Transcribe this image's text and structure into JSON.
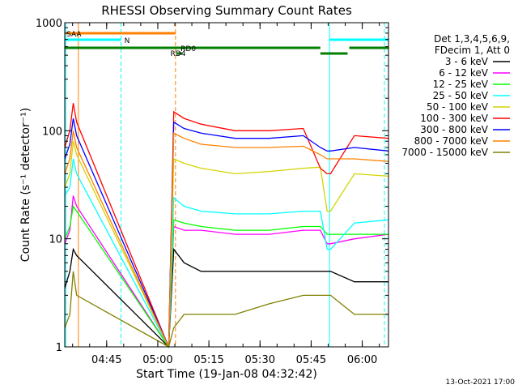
{
  "chart_data": {
    "type": "line",
    "title": "RHESSI Observing Summary Count Rates",
    "xlabel": "Start Time (19-Jan-08 04:32:42)",
    "ylabel": "Count Rate (s⁻¹ detector⁻¹)",
    "yscale": "log",
    "ylim": [
      1,
      1000
    ],
    "xlim_minutes": [
      0,
      95
    ],
    "x_ticks": [
      {
        "minute": 12.3,
        "label": "04:45"
      },
      {
        "minute": 27.3,
        "label": "05:00"
      },
      {
        "minute": 42.3,
        "label": "05:15"
      },
      {
        "minute": 57.3,
        "label": "05:30"
      },
      {
        "minute": 72.3,
        "label": "05:45"
      },
      {
        "minute": 87.3,
        "label": "06:00"
      }
    ],
    "y_ticks": [
      {
        "value": 1,
        "label": "1"
      },
      {
        "value": 10,
        "label": "10"
      },
      {
        "value": 100,
        "label": "100"
      },
      {
        "value": 1000,
        "label": "1000"
      }
    ],
    "legend": {
      "position": "right",
      "header": [
        "Det 1,3,4,5,6,9,",
        "FDecim 1, Att 0"
      ]
    },
    "series": [
      {
        "name": "3 - 6 keV",
        "color": "#000000",
        "x": [
          0,
          1.5,
          2.5,
          3.5,
          30.5,
          32,
          35,
          40,
          50,
          60,
          70,
          75,
          77,
          78,
          85,
          95
        ],
        "y": [
          3.5,
          5,
          8,
          7,
          1,
          8,
          6,
          5,
          5,
          5,
          5,
          5,
          5,
          5,
          4,
          4
        ]
      },
      {
        "name": "6 - 12 keV",
        "color": "#ff00ff",
        "x": [
          0,
          1.5,
          2.5,
          3.5,
          30.5,
          32,
          35,
          40,
          50,
          60,
          70,
          75,
          77,
          78,
          85,
          95
        ],
        "y": [
          9,
          12,
          25,
          20,
          1,
          13,
          12,
          12,
          11,
          11,
          12,
          12,
          9,
          9,
          10,
          11
        ]
      },
      {
        "name": "12 - 25 keV",
        "color": "#00ff00",
        "x": [
          0,
          1.5,
          2.5,
          3.5,
          30.5,
          32,
          35,
          40,
          50,
          60,
          70,
          75,
          77,
          78,
          85,
          95
        ],
        "y": [
          10,
          13,
          20,
          18,
          1,
          15,
          14,
          13,
          12,
          12,
          13,
          13,
          11,
          11,
          11,
          11
        ]
      },
      {
        "name": "25 - 50 keV",
        "color": "#00ffff",
        "x": [
          0,
          1.5,
          2.5,
          3.5,
          30.5,
          32,
          35,
          40,
          50,
          60,
          70,
          75,
          77,
          78,
          85,
          95
        ],
        "y": [
          25,
          30,
          55,
          40,
          1,
          24,
          20,
          18,
          17,
          17,
          18,
          18,
          8,
          8,
          14,
          15
        ]
      },
      {
        "name": "50 - 100 keV",
        "color": "#d4d400",
        "x": [
          0,
          1.5,
          2.5,
          3.5,
          30.5,
          32,
          35,
          40,
          50,
          60,
          70,
          75,
          77,
          78,
          85,
          95
        ],
        "y": [
          30,
          40,
          80,
          60,
          1,
          55,
          50,
          45,
          40,
          42,
          45,
          46,
          18,
          18,
          40,
          38
        ]
      },
      {
        "name": "100 - 300 keV",
        "color": "#ff0000",
        "x": [
          0,
          1.5,
          2.5,
          3.5,
          30.5,
          32,
          35,
          40,
          50,
          60,
          70,
          75,
          77,
          78,
          85,
          95
        ],
        "y": [
          70,
          100,
          180,
          120,
          1,
          150,
          130,
          115,
          100,
          100,
          105,
          45,
          40,
          40,
          90,
          85
        ]
      },
      {
        "name": "300 - 800 keV",
        "color": "#0000ff",
        "x": [
          0,
          1.5,
          2.5,
          3.5,
          30.5,
          32,
          35,
          40,
          50,
          60,
          70,
          75,
          77,
          78,
          85,
          95
        ],
        "y": [
          55,
          75,
          130,
          90,
          1,
          120,
          105,
          95,
          85,
          85,
          90,
          70,
          65,
          65,
          70,
          65
        ]
      },
      {
        "name": "800 - 7000 keV",
        "color": "#ff8000",
        "x": [
          0,
          1.5,
          2.5,
          3.5,
          30.5,
          32,
          35,
          40,
          50,
          60,
          70,
          75,
          77,
          78,
          85,
          95
        ],
        "y": [
          40,
          55,
          100,
          70,
          1,
          95,
          85,
          75,
          70,
          70,
          72,
          60,
          55,
          55,
          55,
          52
        ]
      },
      {
        "name": "7000 - 15000 keV",
        "color": "#808000",
        "x": [
          0,
          1.5,
          2.5,
          3.5,
          30.5,
          32,
          35,
          40,
          50,
          60,
          70,
          75,
          77,
          78,
          85,
          95
        ],
        "y": [
          1.5,
          2,
          5,
          3,
          1,
          1.5,
          2,
          2,
          2,
          2.5,
          3,
          3,
          3,
          3,
          2,
          2
        ]
      }
    ],
    "vertical_lines": [
      {
        "minute": 0.3,
        "color": "#00ffff",
        "style": "solid"
      },
      {
        "minute": 4.0,
        "color": "#ff8000",
        "style": "solid"
      },
      {
        "minute": 16.5,
        "color": "#00ffff",
        "style": "dashed"
      },
      {
        "minute": 32.5,
        "color": "#ff8000",
        "style": "dashed"
      },
      {
        "minute": 77.7,
        "color": "#00ffff",
        "style": "solid"
      },
      {
        "minute": 93.8,
        "color": "#00ffff",
        "style": "dashed"
      }
    ],
    "flag_bars": [
      {
        "label": "SAA",
        "color": "#ff8000",
        "row": 1,
        "start": 0.3,
        "end": 32.5,
        "label_minute": 0.5
      },
      {
        "label": "N",
        "color": "#00ffff",
        "row": 2,
        "start": 0,
        "end": 16.5,
        "label_minute": 17.5
      },
      {
        "label": "",
        "color": "#00ffff",
        "row": 2,
        "start": 77.7,
        "end": 95
      },
      {
        "label": "RD0",
        "color": "#008000",
        "row": 3,
        "start": 0,
        "end": 75.0,
        "label_minute": 34.0
      },
      {
        "label": "",
        "color": "#008000",
        "row": 3,
        "start": 83.5,
        "end": 95
      },
      {
        "label": "RD4",
        "color": "#008000",
        "row": 4,
        "start": 33.0,
        "end": 34.5,
        "label_minute": 31.0
      },
      {
        "label": "",
        "color": "#008000",
        "row": 4,
        "start": 75.0,
        "end": 83.0
      }
    ]
  },
  "footer": {
    "timestamp": "13-Oct-2021 17:00"
  }
}
